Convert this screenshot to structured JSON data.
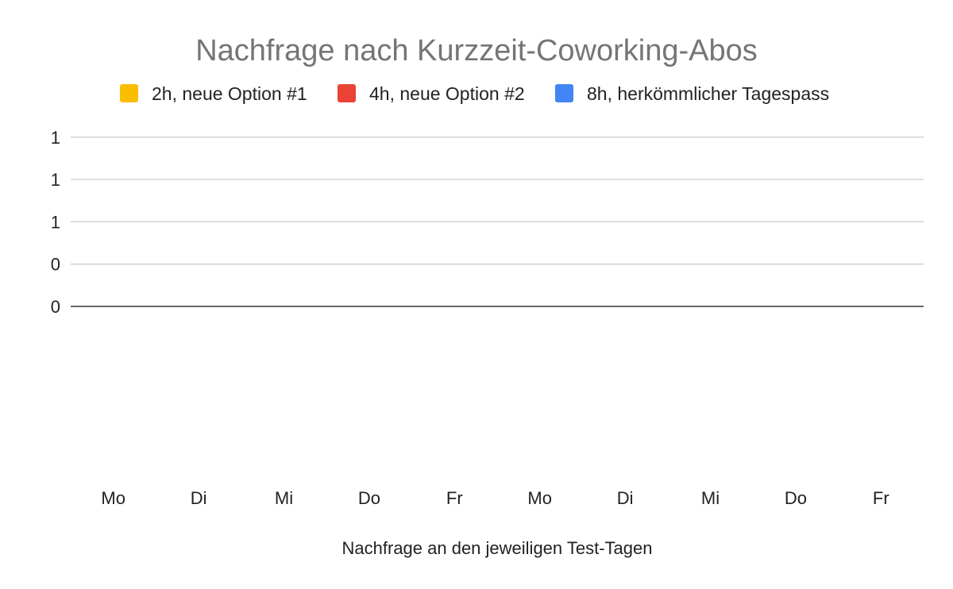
{
  "chart_data": {
    "type": "bar",
    "title": "Nachfrage nach Kurzzeit-Coworking-Abos",
    "xlabel": "Nachfrage an den jeweiligen Test-Tagen",
    "ylabel": "",
    "categories": [
      "Mo",
      "Di",
      "Mi",
      "Do",
      "Fr",
      "Mo",
      "Di",
      "Mi",
      "Do",
      "Fr"
    ],
    "series": [
      {
        "name": "2h, neue Option #1",
        "color": "#fbbc04",
        "values": [
          0,
          0,
          0,
          0,
          0,
          0,
          0,
          0,
          0,
          0
        ]
      },
      {
        "name": "4h, neue Option #2",
        "color": "#ea4335",
        "values": [
          0,
          0,
          0,
          0,
          0,
          0,
          0,
          0,
          0,
          0
        ]
      },
      {
        "name": "8h, herkömmlicher Tagespass",
        "color": "#4285f4",
        "values": [
          0,
          0,
          0,
          0,
          0,
          0,
          0,
          0,
          0,
          0
        ]
      }
    ],
    "y_tick_labels": [
      "0",
      "0",
      "1",
      "1",
      "1"
    ],
    "ylim": [
      0,
      1
    ],
    "grid": true,
    "legend_position": "top"
  }
}
